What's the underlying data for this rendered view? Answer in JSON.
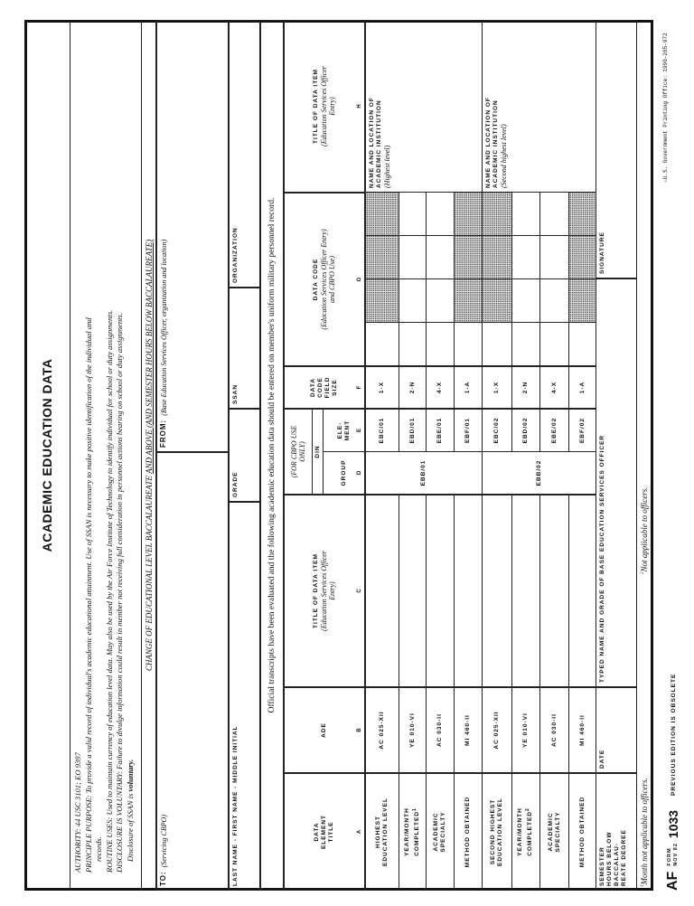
{
  "title": "ACADEMIC EDUCATION DATA",
  "privacy": {
    "authority": "AUTHORITY:  44 USC 3101; EO 9397",
    "purpose": "PRINCIPLE PURPOSE:  To provide a valid record of individual's academic educational attainment.  Use of  SSAN is necessary to make positive identification of the individual and",
    "purpose_cont": "records.",
    "routine": "ROUTINE USES:  Used to maintain currency of education level data.  May also be used by the Air Force Institute of Technology to identify individual for school or duty assignments.",
    "disclosure": "DISCLOSURE IS VOLUNTARY:  Failure to divulge information could result in member not receiving full consideration in personnel actions bearing on school or duty assignments.",
    "ssan_prefix": "Disclosure of SSAN is ",
    "ssan_bold": "voluntary."
  },
  "change_heading": {
    "plain": "CHANGE OF EDUCATIONAL LEVEL BACCALAUREATE ",
    "underlined": "AND ABOVE (AND SEMESTER HOURS BELOW BACCALAUREATE)"
  },
  "to": {
    "label": "TO:",
    "hint": "(Servicing CBPO)"
  },
  "from": {
    "label": "FROM:",
    "hint": "(Base Education Services Officer, organization and location)"
  },
  "name_row": {
    "name": "LAST NAME - FIRST NAME - MIDDLE INITIAL",
    "grade": "GRADE",
    "ssan": "SSAN",
    "organization": "ORGANIZATION"
  },
  "statement": "Official transcripts have been evaluated and the following academic education data should be entered on member's uniform military personnel record.",
  "headers": {
    "a": {
      "title": "DATA ELEMENT TITLE",
      "letter": "A"
    },
    "b": {
      "title": "ADE",
      "letter": "B"
    },
    "c": {
      "title": "TITLE OF DATA ITEM",
      "note": "(Education Services Officer Entry)",
      "letter": "C"
    },
    "cbpo": "(FOR CBPO USE ONLY)",
    "din": "DIN",
    "d": {
      "title": "GROUP",
      "letter": "D"
    },
    "e": {
      "title": "ELE- MENT",
      "letter": "E"
    },
    "f": {
      "title": "DATA CODE FIELD SIZE",
      "letter": "F"
    },
    "g": {
      "title": "DATA CODE",
      "note": "(Education Services Officer Entry)",
      "note2": "and CBPO Use)",
      "letter": "G"
    },
    "h": {
      "title": "TITLE OF DATA ITEM",
      "note": "(Education Services Officer Entry)",
      "letter": "H"
    }
  },
  "rows": [
    {
      "title": "HIGHEST EDUCATION LEVEL",
      "sup": "",
      "ade": "AC 025-XII",
      "element": "EBC/01",
      "size": "1-X",
      "data_code_shaded": true
    },
    {
      "title": "YEAR/MONTH COMPLETED",
      "sup": "1",
      "ade": "YE 010-VI",
      "element": "EBD/01",
      "size": "2-N",
      "data_code_shaded": false
    },
    {
      "title": "ACADEMIC SPECIALTY",
      "sup": "",
      "ade": "AC 030-II",
      "element": "EBE/01",
      "size": "4-X",
      "data_code_shaded": false
    },
    {
      "title": "METHOD OBTAINED",
      "sup": "",
      "ade": "MI 460-II",
      "element": "EBF/01",
      "size": "1-A",
      "data_code_shaded": true
    },
    {
      "title": "SECOND HIGHEST EDUCATION LEVEL",
      "sup": "",
      "ade": "AC 025-XII",
      "element": "EBC/02",
      "size": "1-X",
      "data_code_shaded": true
    },
    {
      "title": "YEAR/MONTH COMPLETED",
      "sup": "2",
      "ade": "YE 010-VI",
      "element": "EBD/02",
      "size": "2-N",
      "data_code_shaded": false
    },
    {
      "title": "ACADEMIC SPECIALTY",
      "sup": "",
      "ade": "AC 030-II",
      "element": "EBE/02",
      "size": "4-X",
      "data_code_shaded": false
    },
    {
      "title": "METHOD OBTAINED",
      "sup": "",
      "ade": "MI 460-II",
      "element": "EBF/02",
      "size": "1-A",
      "data_code_shaded": true
    }
  ],
  "groups": [
    {
      "code": "EBB/01"
    },
    {
      "code": "EBB/02"
    }
  ],
  "institutions": [
    {
      "title": "NAME AND LOCATION OF ACADEMIC INSTITUTION",
      "note": "(Highest level)"
    },
    {
      "title": "NAME AND LOCATION OF ACADEMIC INSTITUTION",
      "note": "(Second highest level)"
    }
  ],
  "bottom": {
    "semester": "SEMESTER HOURS BELOW BACCALAU- REATE DEGREE",
    "date": "DATE",
    "typed_name": "TYPED NAME AND GRADE OF BASE EDUCATION SERVICES OFFICER",
    "signature": "SIGNATURE"
  },
  "footnotes": [
    {
      "mark": "1",
      "text": "Month not applicable to officers."
    },
    {
      "mark": "2",
      "text": "Not applicable to officers."
    }
  ],
  "footer": {
    "af": "AF",
    "form": "FORM",
    "date": "NOV 82",
    "number": "1033",
    "obsolete": "PREVIOUS EDITION IS OBSOLETE",
    "gpo": "☆U.S. Government Printing Office: 1990-265-972"
  }
}
